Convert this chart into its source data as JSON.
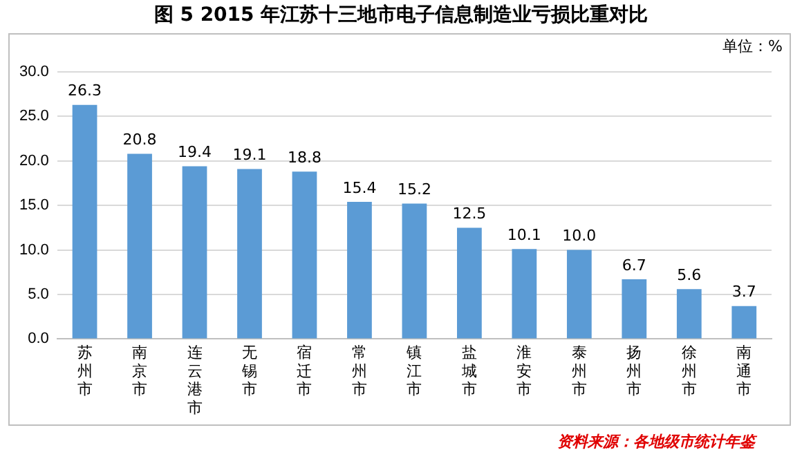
{
  "chart_data": {
    "type": "bar",
    "title": "图 5  2015 年江苏十三地市电子信息制造业亏损比重对比",
    "categories": [
      "苏州市",
      "南京市",
      "连云港市",
      "无锡市",
      "宿迁市",
      "常州市",
      "镇江市",
      "盐城市",
      "淮安市",
      "泰州市",
      "扬州市",
      "徐州市",
      "南通市"
    ],
    "values": [
      26.3,
      20.8,
      19.4,
      19.1,
      18.8,
      15.4,
      15.2,
      12.5,
      10.1,
      10.0,
      6.7,
      5.6,
      3.7
    ],
    "value_labels": [
      "26.3",
      "20.8",
      "19.4",
      "19.1",
      "18.8",
      "15.4",
      "15.2",
      "12.5",
      "10.1",
      "10.0",
      "6.7",
      "5.6",
      "3.7"
    ],
    "color": "#5b9bd5",
    "ylim": [
      0,
      30
    ],
    "yticks": [
      {
        "value": 0,
        "label": "0.0"
      },
      {
        "value": 5,
        "label": "5.0"
      },
      {
        "value": 10,
        "label": "10.0"
      },
      {
        "value": 15,
        "label": "15.0"
      },
      {
        "value": 20,
        "label": "20.0"
      },
      {
        "value": 25,
        "label": "25.0"
      },
      {
        "value": 30,
        "label": "30.0"
      }
    ],
    "grid": "y",
    "legend": false,
    "annotations": [
      "单位：%",
      "资料来源：各地级市统计年鉴"
    ]
  }
}
